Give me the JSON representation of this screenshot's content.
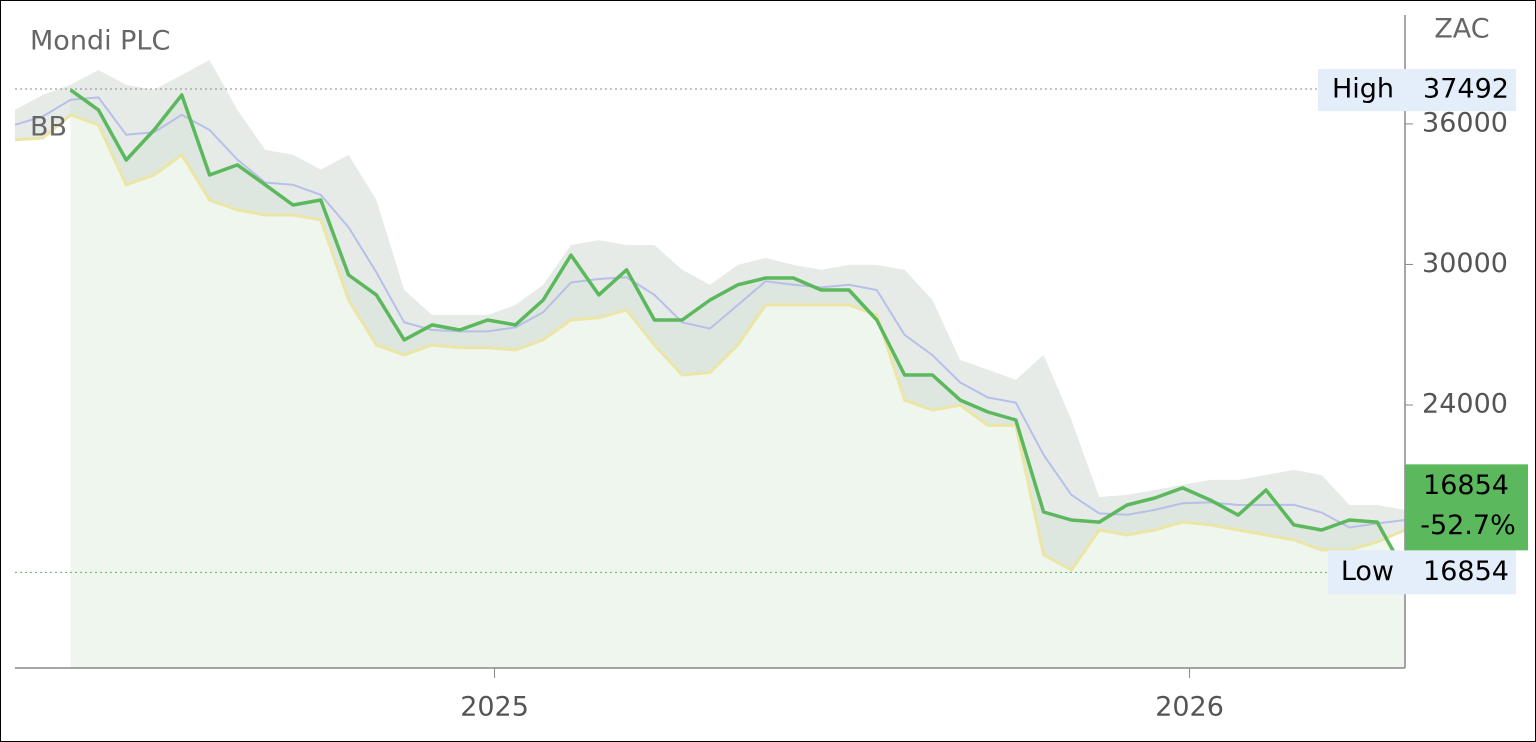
{
  "chart_data": {
    "type": "line",
    "title": "Mondi PLC",
    "y_label": "ZAC",
    "x": [
      2024.31,
      2024.35,
      2024.39,
      2024.43,
      2024.47,
      2024.51,
      2024.55,
      2024.59,
      2024.63,
      2024.67,
      2024.71,
      2024.75,
      2024.79,
      2024.83,
      2024.87,
      2024.91,
      2024.95,
      2024.99,
      2025.03,
      2025.07,
      2025.11,
      2025.15,
      2025.19,
      2025.23,
      2025.27,
      2025.31,
      2025.35,
      2025.39,
      2025.43,
      2025.47,
      2025.51,
      2025.55,
      2025.59,
      2025.63,
      2025.67,
      2025.71,
      2025.75,
      2025.79,
      2025.83,
      2025.87,
      2025.91,
      2025.95,
      2025.99,
      2026.03,
      2026.07,
      2026.11,
      2026.15,
      2026.19,
      2026.23,
      2026.27,
      2026.31
    ],
    "xlim": [
      2024.31,
      2026.31
    ],
    "xticks": [
      2025,
      2026
    ],
    "ylim": [
      12770,
      40650
    ],
    "yticks": [
      24000,
      30000,
      36000
    ],
    "close": {
      "color": "#5cb85c",
      "values": [
        null,
        null,
        37450,
        36600,
        34460,
        35740,
        37240,
        33820,
        34250,
        33400,
        32540,
        32750,
        29550,
        28700,
        26780,
        27420,
        27200,
        27630,
        27420,
        28480,
        30400,
        28700,
        29770,
        27630,
        27630,
        28480,
        29130,
        29420,
        29420,
        28910,
        28910,
        27630,
        25280,
        25280,
        24210,
        23700,
        23360,
        19430,
        19090,
        19000,
        19730,
        20030,
        20460,
        19940,
        19300,
        20370,
        18880,
        18660,
        19090,
        19000,
        16854
      ]
    },
    "bollinger": {
      "name": "BB",
      "color": "#b8bfe8",
      "upper": [
        36600,
        37240,
        37670,
        38300,
        37670,
        37450,
        38090,
        38730,
        36600,
        34890,
        34680,
        34040,
        34680,
        32750,
        28910,
        27840,
        27840,
        27840,
        28270,
        29130,
        30830,
        31040,
        30830,
        30830,
        29770,
        29130,
        29980,
        30280,
        29980,
        29770,
        29980,
        29980,
        29770,
        28480,
        25920,
        25500,
        25070,
        26140,
        23360,
        20070,
        20160,
        20370,
        20590,
        20800,
        20800,
        21010,
        21230,
        21010,
        19730,
        19730,
        19520
      ],
      "middle": [
        35960,
        36320,
        37030,
        37130,
        35540,
        35640,
        36390,
        35740,
        34470,
        33500,
        33400,
        32970,
        31580,
        29660,
        27530,
        27200,
        27140,
        27140,
        27310,
        27960,
        29230,
        29380,
        29450,
        28700,
        27530,
        27260,
        28270,
        29280,
        29130,
        29020,
        29130,
        28910,
        26990,
        26130,
        24960,
        24320,
        24100,
        21870,
        20160,
        19370,
        19310,
        19520,
        19800,
        19840,
        19730,
        19730,
        19740,
        19410,
        18770,
        18940,
        19090
      ],
      "lower": [
        35320,
        35400,
        36380,
        35960,
        33400,
        33820,
        34680,
        32750,
        32330,
        32110,
        32110,
        31900,
        28480,
        26560,
        26140,
        26560,
        26440,
        26440,
        26350,
        26780,
        27630,
        27720,
        28060,
        26560,
        25280,
        25390,
        26560,
        28270,
        28270,
        28270,
        28270,
        27840,
        24210,
        23780,
        23990,
        23130,
        23130,
        17600,
        16960,
        18660,
        18450,
        18660,
        19000,
        18880,
        18660,
        18450,
        18240,
        17810,
        17810,
        18150,
        18660
      ]
    },
    "high": {
      "label": "High",
      "value": 37492
    },
    "low": {
      "label": "Low",
      "value": 16854
    },
    "last": {
      "value": 16854,
      "change": -52.7,
      "change_label": "-52.7%"
    }
  }
}
